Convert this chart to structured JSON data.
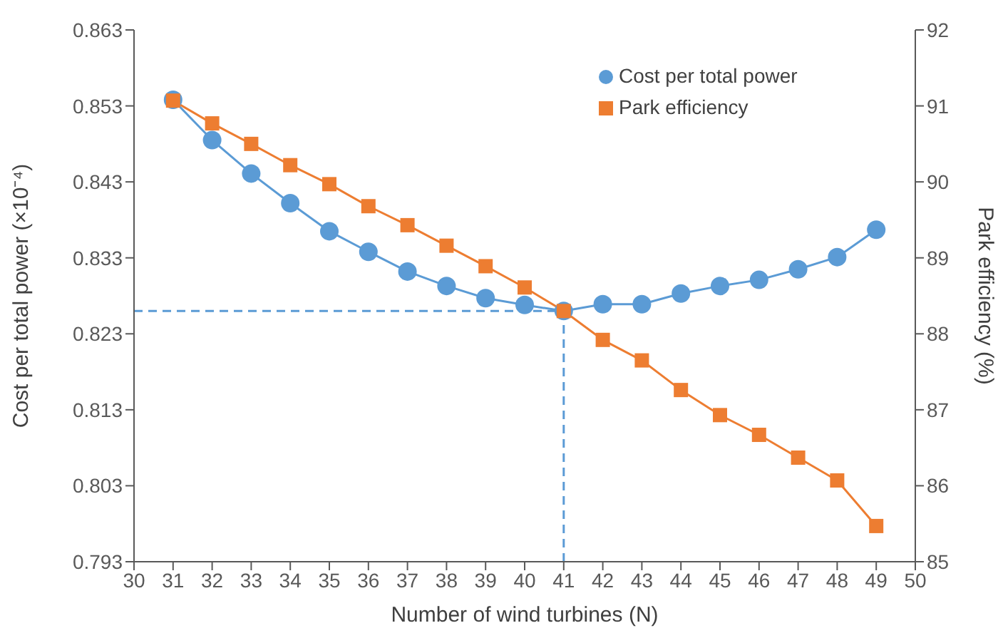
{
  "chart_data": {
    "type": "line",
    "xlabel": "Number of wind turbines (N)",
    "ylabel": "Cost per total power (×10⁻⁴)",
    "y2label": "Park efficiency (%)",
    "x": [
      31,
      32,
      33,
      34,
      35,
      36,
      37,
      38,
      39,
      40,
      41,
      42,
      43,
      44,
      45,
      46,
      47,
      48,
      49
    ],
    "series": [
      {
        "name": "Cost per total power",
        "color": "#5b9bd5",
        "marker": "circle",
        "values": [
          0.8538,
          0.8485,
          0.8441,
          0.8402,
          0.8365,
          0.8338,
          0.8312,
          0.8293,
          0.8277,
          0.8268,
          0.826,
          0.8269,
          0.8269,
          0.8283,
          0.8293,
          0.8301,
          0.8315,
          0.8331,
          0.8367
        ]
      },
      {
        "name": "Park efficiency",
        "color": "#ed7d31",
        "marker": "square",
        "axis": "y2",
        "values": [
          91.07,
          90.77,
          90.5,
          90.22,
          89.97,
          89.68,
          89.43,
          89.16,
          88.89,
          88.61,
          88.3,
          87.92,
          87.65,
          87.26,
          86.93,
          86.67,
          86.37,
          86.07,
          85.47
        ]
      }
    ],
    "xlim": [
      30,
      50
    ],
    "xticks": [
      30,
      31,
      32,
      33,
      34,
      35,
      36,
      37,
      38,
      39,
      40,
      41,
      42,
      43,
      44,
      45,
      46,
      47,
      48,
      49,
      50
    ],
    "ylim": [
      0.793,
      0.863
    ],
    "yticks": [
      0.793,
      0.803,
      0.813,
      0.823,
      0.833,
      0.843,
      0.853,
      0.863
    ],
    "y2lim": [
      85,
      92
    ],
    "y2ticks": [
      85,
      86,
      87,
      88,
      89,
      90,
      91,
      92
    ],
    "ref_lines": [
      {
        "axis": "y",
        "value": 0.826,
        "color": "#5b9bd5",
        "line_style": "dashed"
      },
      {
        "axis": "x",
        "value": 41,
        "color": "#5b9bd5",
        "line_style": "dashed"
      }
    ],
    "legend": "top right",
    "grid": false
  }
}
